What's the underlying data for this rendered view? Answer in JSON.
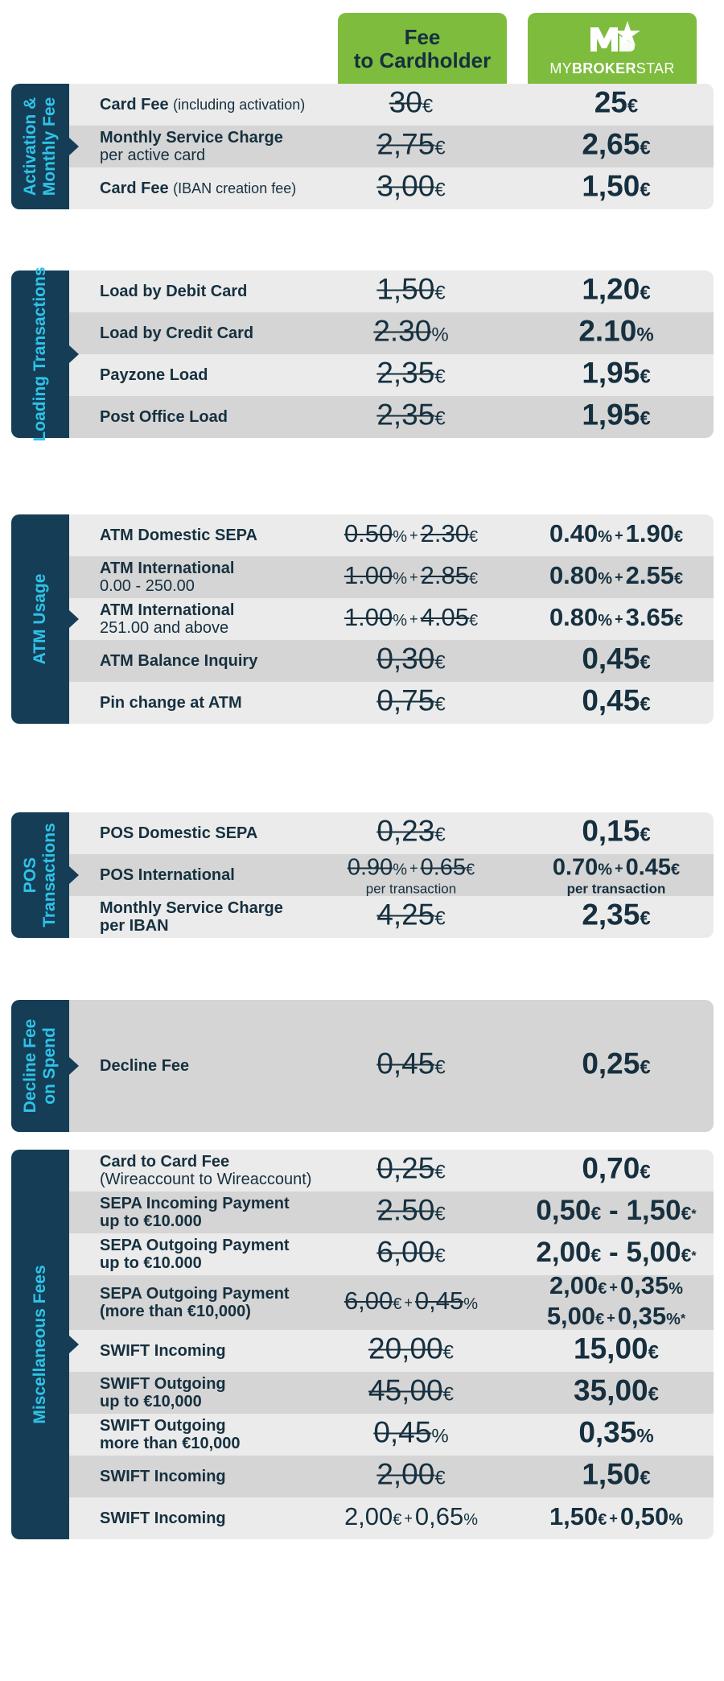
{
  "header": {
    "fee_label": "Fee\nto Cardholder",
    "brand": {
      "prefix": "MY",
      "bold": "BROKER",
      "suffix": "STAR",
      "mark": "MB"
    },
    "accent_color": "#7ebc3e",
    "sidebar_color": "#153e56",
    "sidebar_text_color": "#2fc3e8"
  },
  "sections": [
    {
      "title": "Activation &\nMonthly Fee",
      "rows": [
        {
          "label": "Card Fee",
          "label_sub": "(including activation)",
          "old": "30",
          "old_unit": "€",
          "new": "25",
          "new_unit": "€"
        },
        {
          "label": "Monthly Service Charge",
          "label_line2": "per active card",
          "old": "2,75",
          "old_unit": "€",
          "new": "2,65",
          "new_unit": "€"
        },
        {
          "label": "Card Fee",
          "label_sub": "(IBAN creation fee)",
          "old": "3,00",
          "old_unit": "€",
          "new": "1,50",
          "new_unit": "€"
        }
      ]
    },
    {
      "title": "Loading Transactions",
      "rows": [
        {
          "label": "Load by Debit Card",
          "old": "1,50",
          "old_unit": "€",
          "new": "1,20",
          "new_unit": "€"
        },
        {
          "label": "Load by Credit Card",
          "old": "2.30",
          "old_unit": "%",
          "new": "2.10",
          "new_unit": "%"
        },
        {
          "label": "Payzone Load",
          "old": "2,35",
          "old_unit": "€",
          "new": "1,95",
          "new_unit": "€"
        },
        {
          "label": "Post Office Load",
          "old": "2,35",
          "old_unit": "€",
          "new": "1,95",
          "new_unit": "€"
        }
      ]
    },
    {
      "title": "ATM Usage",
      "rows": [
        {
          "label": "ATM Domestic SEPA",
          "old_a": "0.50",
          "old_a_unit": "%",
          "old_b": "2.30",
          "old_b_unit": "€",
          "new_a": "0.40",
          "new_a_unit": "%",
          "new_b": "1.90",
          "new_b_unit": "€",
          "plus": "+"
        },
        {
          "label": "ATM International",
          "label_line2": "0.00 - 250.00",
          "old_a": "1.00",
          "old_a_unit": "%",
          "old_b": "2.85",
          "old_b_unit": "€",
          "new_a": "0.80",
          "new_a_unit": "%",
          "new_b": "2.55",
          "new_b_unit": "€",
          "plus": "+"
        },
        {
          "label": "ATM International",
          "label_line2": "251.00 and above",
          "old_a": "1.00",
          "old_a_unit": "%",
          "old_b": "4.05",
          "old_b_unit": "€",
          "new_a": "0.80",
          "new_a_unit": "%",
          "new_b": "3.65",
          "new_b_unit": "€",
          "plus": "+"
        },
        {
          "label": "ATM Balance Inquiry",
          "old": "0,30",
          "old_unit": "€",
          "new": "0,45",
          "new_unit": "€"
        },
        {
          "label": "Pin change at ATM",
          "old": "0,75",
          "old_unit": "€",
          "new": "0,45",
          "new_unit": "€"
        }
      ]
    },
    {
      "title": "POS\nTransactions",
      "rows": [
        {
          "label": "POS Domestic SEPA",
          "old": "0,23",
          "old_unit": "€",
          "new": "0,15",
          "new_unit": "€"
        },
        {
          "label": "POS International",
          "old_a": "0.90",
          "old_a_unit": "%",
          "old_b": "0.65",
          "old_b_unit": "€",
          "new_a": "0.70",
          "new_a_unit": "%",
          "new_b": "0.45",
          "new_b_unit": "€",
          "plus": "+",
          "note": "per transaction"
        },
        {
          "label": "Monthly Service Charge",
          "label_line2": "per IBAN",
          "old": "4,25",
          "old_unit": "€",
          "new": "2,35",
          "new_unit": "€"
        }
      ]
    },
    {
      "title": "Decline Fee\non Spend",
      "rows": [
        {
          "label": "Decline Fee",
          "old": "0,45",
          "old_unit": "€",
          "new": "0,25",
          "new_unit": "€"
        }
      ]
    },
    {
      "title": "Miscellaneous Fees",
      "rows": [
        {
          "label": "Card to Card Fee",
          "label_line2": "(Wireaccount to Wireaccount)",
          "old": "0,25",
          "old_unit": "€",
          "new": "0,70",
          "new_unit": "€"
        },
        {
          "label": "SEPA Incoming Payment",
          "label_line2": "up to €10.000",
          "old": "2.50",
          "old_unit": "€",
          "new": "0,50",
          "new_unit": "€",
          "new_to": "1,50",
          "new_to_unit": "€",
          "star": "*",
          "dash": "-"
        },
        {
          "label": "SEPA Outgoing Payment",
          "label_line2": "up to €10.000",
          "old": "6,00",
          "old_unit": "€",
          "new": "2,00",
          "new_unit": "€",
          "new_to": "5,00",
          "new_to_unit": "€",
          "star": "*",
          "dash": "-"
        },
        {
          "label": "SEPA Outgoing Payment",
          "label_line2": "(more than €10,000)",
          "old_a": "6,00",
          "old_a_unit": "€",
          "old_b": "0,45",
          "old_b_unit": "%",
          "plus": "+",
          "new_l1_a": "2,00",
          "new_l1_a_unit": "€",
          "new_l1_b": "0,35",
          "new_l1_b_unit": "%",
          "new_l2_a": "5,00",
          "new_l2_a_unit": "€",
          "new_l2_b": "0,35",
          "new_l2_b_unit": "%",
          "star": "*"
        },
        {
          "label": "SWIFT Incoming",
          "old": "20,00",
          "old_unit": "€",
          "new": "15,00",
          "new_unit": "€"
        },
        {
          "label": "SWIFT Outgoing",
          "label_line2": "up to €10,000",
          "old": "45,00",
          "old_unit": "€",
          "new": "35,00",
          "new_unit": "€"
        },
        {
          "label": "SWIFT Outgoing",
          "label_line2": "more than €10,000",
          "old": "0,45",
          "old_unit": "%",
          "new": "0,35",
          "new_unit": "%"
        },
        {
          "label": "SWIFT Incoming",
          "old": "2,00",
          "old_unit": "€",
          "new": "1,50",
          "new_unit": "€"
        },
        {
          "label": "SWIFT Incoming",
          "old_a": "2,00",
          "old_a_unit": "€",
          "old_b": "0,65",
          "old_b_unit": "%",
          "plus": "+",
          "new_a": "1,50",
          "new_a_unit": "€",
          "new_b": "0,50",
          "new_b_unit": "%"
        }
      ]
    }
  ]
}
